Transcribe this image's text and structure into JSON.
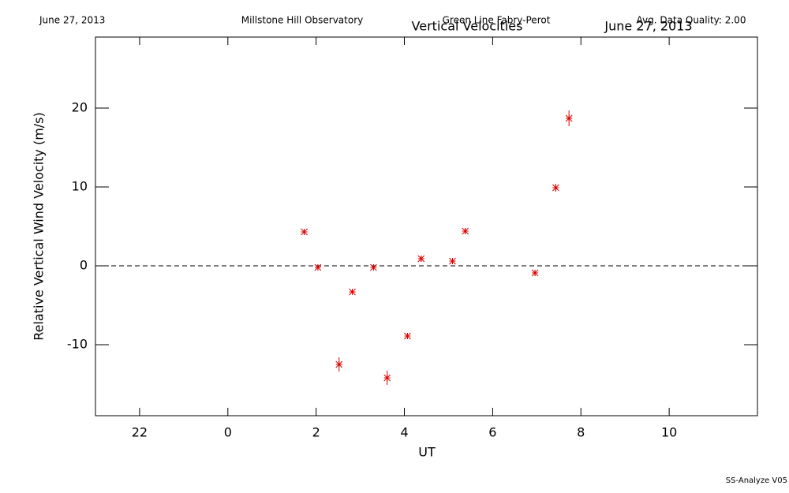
{
  "header": {
    "date": "June 27, 2013",
    "observatory": "Millstone Hill Observatory",
    "instrument": "Green Line Fabry-Perot",
    "quality": "Avg. Data Quality: 2.00"
  },
  "footer": "SS-Analyze V05",
  "chart_data": {
    "type": "scatter",
    "title": "Vertical Velocities",
    "subtitle": "June 27, 2013",
    "x_label": "UT",
    "y_label": "Relative Vertical Wind Velocity (m/s)",
    "x": [
      1.73,
      2.04,
      2.52,
      2.82,
      3.3,
      3.61,
      4.07,
      4.38,
      5.09,
      5.38,
      6.96,
      7.43,
      7.73
    ],
    "values": [
      4.3,
      -0.2,
      -12.5,
      -3.3,
      -0.2,
      -14.2,
      -8.9,
      0.9,
      0.6,
      4.4,
      -0.9,
      9.9,
      18.7
    ],
    "errors": [
      0.4,
      0.4,
      0.9,
      0.4,
      0.4,
      0.9,
      0.4,
      0.4,
      0.4,
      0.4,
      0.4,
      0.5,
      1.0
    ],
    "color": "#dd0000",
    "zero_line": true,
    "xlim": [
      -3,
      12
    ],
    "xticks": [
      {
        "value": -2,
        "label": "22"
      },
      0,
      2,
      4,
      6,
      8,
      10
    ],
    "ylim": [
      -19,
      29
    ],
    "yticks": [
      -10,
      0,
      10,
      20
    ]
  }
}
